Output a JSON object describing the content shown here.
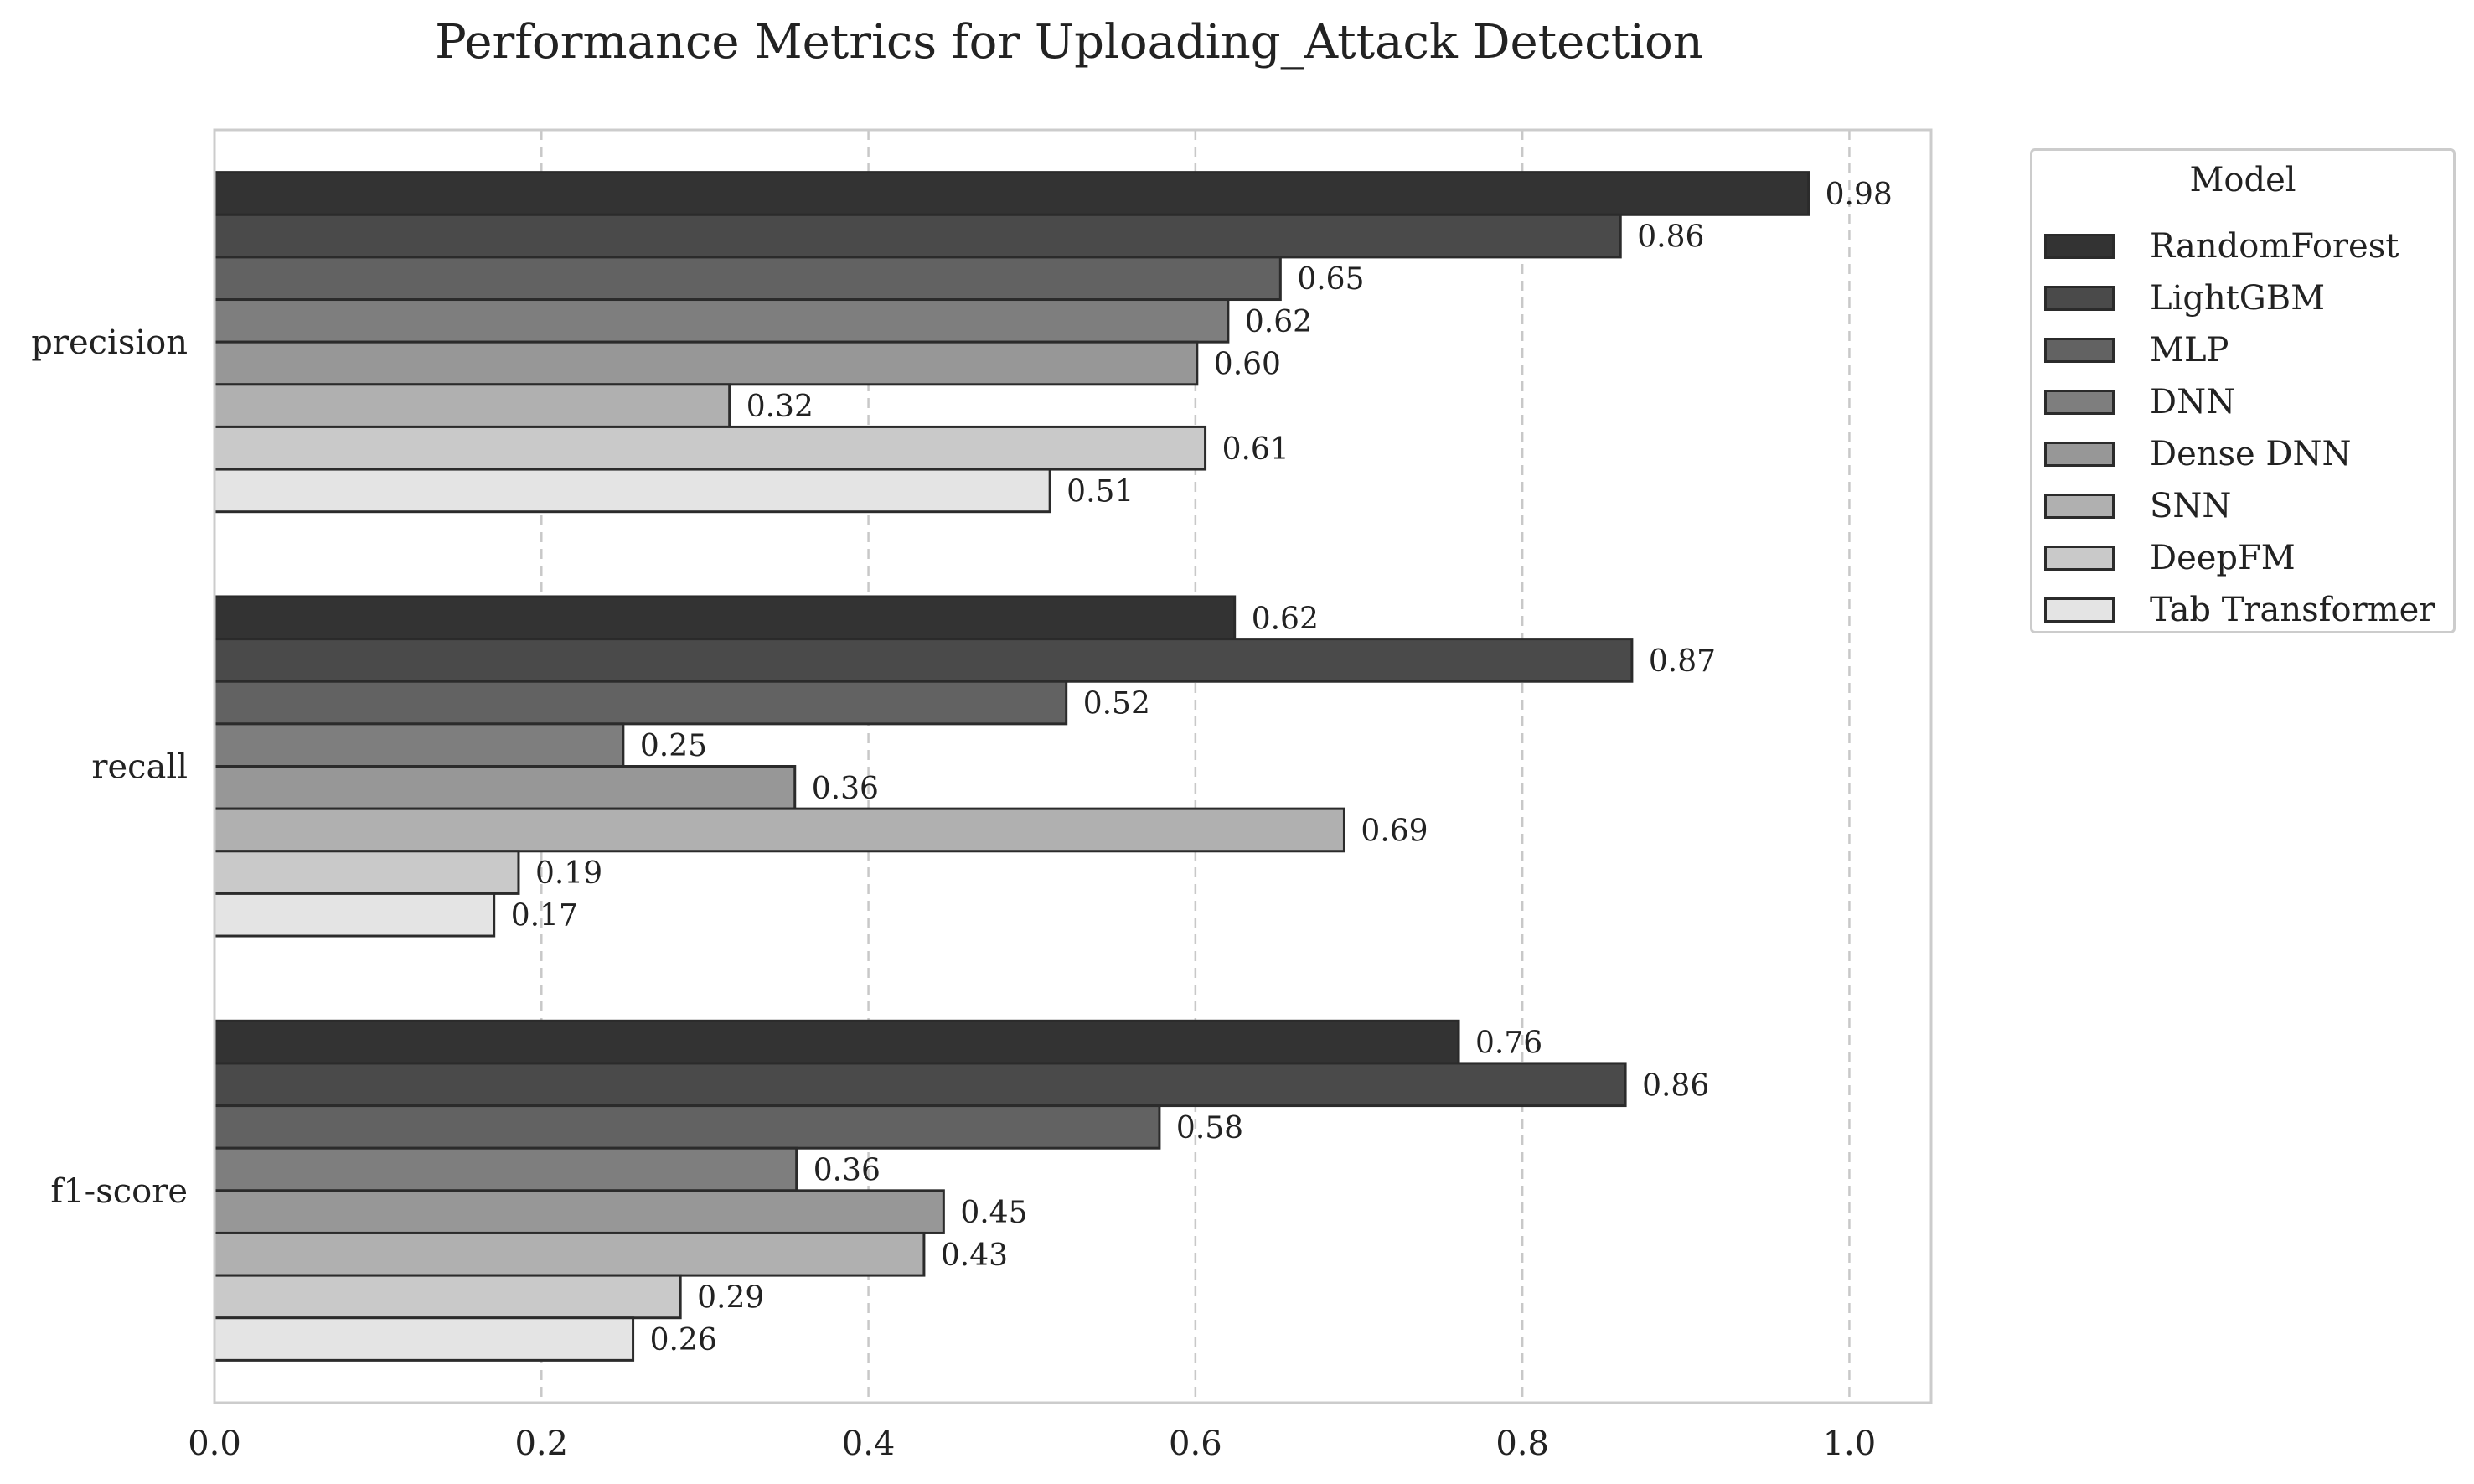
{
  "chart_data": {
    "type": "bar",
    "orientation": "horizontal",
    "title": "Performance Metrics for Uploading_Attack Detection",
    "xlabel": "",
    "ylabel": "",
    "categories": [
      "precision",
      "recall",
      "f1-score"
    ],
    "xlim": [
      0,
      1.05
    ],
    "xticks": [
      0.0,
      0.2,
      0.4,
      0.6,
      0.8,
      1.0
    ],
    "xtick_labels": [
      "0.0",
      "0.2",
      "0.4",
      "0.6",
      "0.8",
      "1.0"
    ],
    "grid": "vertical dashed",
    "legend_title": "Model",
    "legend_position": "outside-top-right",
    "series": [
      {
        "name": "RandomForest",
        "color": "#333333",
        "values": [
          0.975,
          0.624,
          0.761
        ],
        "labels": [
          "0.98",
          "0.62",
          "0.76"
        ]
      },
      {
        "name": "LightGBM",
        "color": "#4a4a4a",
        "values": [
          0.86,
          0.867,
          0.863
        ],
        "labels": [
          "0.86",
          "0.87",
          "0.86"
        ]
      },
      {
        "name": "MLP",
        "color": "#626262",
        "values": [
          0.652,
          0.521,
          0.578
        ],
        "labels": [
          "0.65",
          "0.52",
          "0.58"
        ]
      },
      {
        "name": "DNN",
        "color": "#7e7e7e",
        "values": [
          0.62,
          0.25,
          0.356
        ],
        "labels": [
          "0.62",
          "0.25",
          "0.36"
        ]
      },
      {
        "name": "Dense DNN",
        "color": "#979797",
        "values": [
          0.601,
          0.355,
          0.446
        ],
        "labels": [
          "0.60",
          "0.36",
          "0.45"
        ]
      },
      {
        "name": "SNN",
        "color": "#b0b0b0",
        "values": [
          0.315,
          0.691,
          0.434
        ],
        "labels": [
          "0.32",
          "0.69",
          "0.43"
        ]
      },
      {
        "name": "DeepFM",
        "color": "#c9c9c9",
        "values": [
          0.606,
          0.186,
          0.285
        ],
        "labels": [
          "0.61",
          "0.19",
          "0.29"
        ]
      },
      {
        "name": "Tab Transformer",
        "color": "#e4e4e4",
        "values": [
          0.511,
          0.171,
          0.256
        ],
        "labels": [
          "0.51",
          "0.17",
          "0.26"
        ]
      }
    ]
  }
}
